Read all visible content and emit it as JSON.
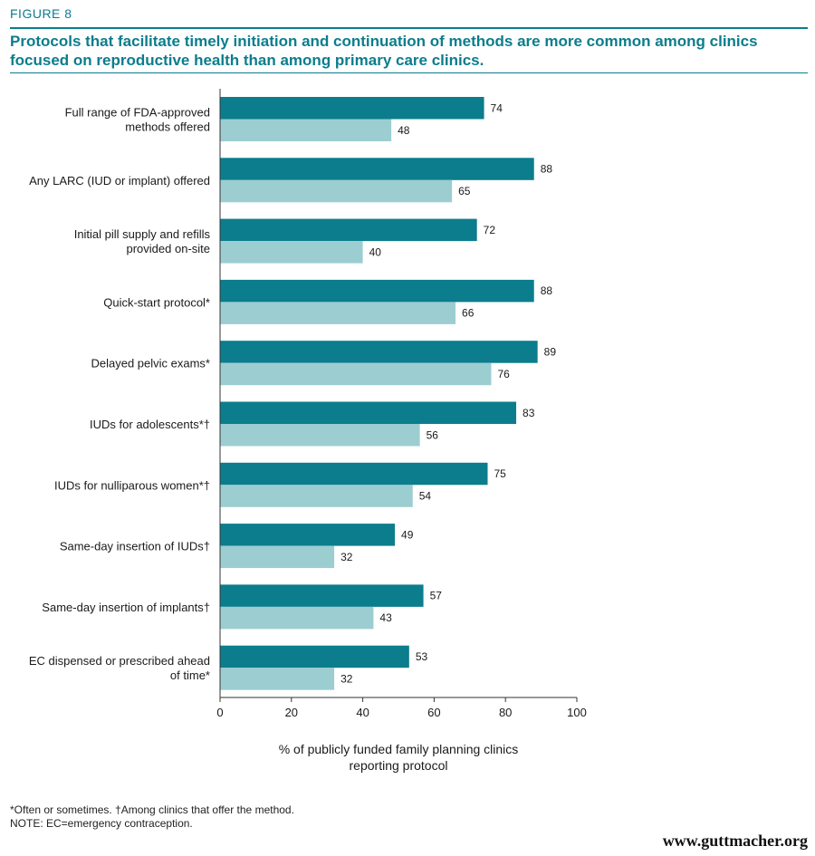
{
  "figure_label": "FIGURE 8",
  "title": "Protocols that facilitate timely initiation and continuation of methods are more common among clinics focused on reproductive health than among primary care clinics.",
  "xlabel_line1": "% of publicly funded family planning clinics",
  "xlabel_line2": "reporting protocol",
  "footnote_line1": "*Often or sometimes. †Among clinics that offer the method.",
  "footnote_line2": "NOTE: EC=emergency contraception.",
  "website": "www.guttmacher.org",
  "colors": {
    "series1": "#0b7d8c",
    "series2": "#9ccdd1",
    "accent": "#0b7d8c"
  },
  "chart_data": {
    "type": "bar",
    "orientation": "horizontal",
    "categories": [
      [
        "Full range of FDA-approved",
        "methods offered"
      ],
      [
        "Any LARC (IUD or implant) offered"
      ],
      [
        "Initial pill supply and refills",
        "provided on-site"
      ],
      [
        "Quick-start protocol*"
      ],
      [
        "Delayed pelvic exams*"
      ],
      [
        "IUDs for adolescents*†"
      ],
      [
        "IUDs for nulliparous women*†"
      ],
      [
        "Same-day insertion of IUDs†"
      ],
      [
        "Same-day insertion of implants†"
      ],
      [
        "EC dispensed or prescribed ahead",
        "of time*"
      ]
    ],
    "series": [
      {
        "values": [
          74,
          88,
          72,
          88,
          89,
          83,
          75,
          49,
          57,
          53
        ]
      },
      {
        "values": [
          48,
          65,
          40,
          66,
          76,
          56,
          54,
          32,
          43,
          32
        ]
      }
    ],
    "xlim": [
      0,
      100
    ],
    "xticks": [
      0,
      20,
      40,
      60,
      80,
      100
    ],
    "grid": false,
    "legend": "none"
  }
}
